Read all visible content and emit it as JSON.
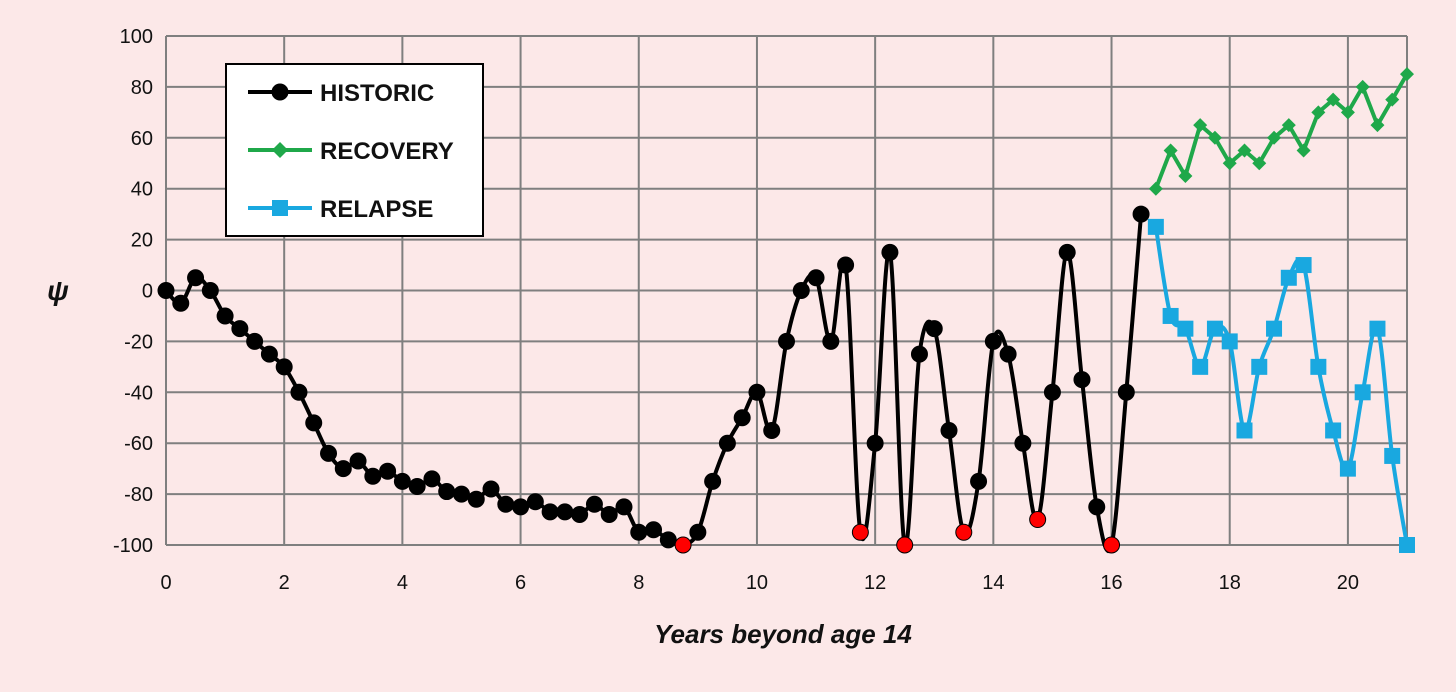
{
  "chart_data": {
    "type": "line",
    "title": "",
    "xlabel": "Years beyond age 14",
    "ylabel": "ψ",
    "xlim": [
      0,
      21
    ],
    "ylim": [
      -100,
      100
    ],
    "x_ticks": [
      "0",
      "2",
      "4",
      "6",
      "8",
      "10",
      "12",
      "14",
      "16",
      "18",
      "20"
    ],
    "y_ticks": [
      "100",
      "80",
      "60",
      "40",
      "20",
      "0",
      "-20",
      "-40",
      "-60",
      "-80",
      "-100"
    ],
    "grid": true,
    "legend_position": "top-left",
    "colors": {
      "background": "#fce8e8",
      "grid": "#7f7f7f",
      "highlight": "#ff0000"
    },
    "series": [
      {
        "name": "HISTORIC",
        "color": "#000000",
        "marker": "circle",
        "smooth": true,
        "x": [
          0,
          0.25,
          0.5,
          0.75,
          1,
          1.25,
          1.5,
          1.75,
          2,
          2.25,
          2.5,
          2.75,
          3,
          3.25,
          3.5,
          3.75,
          4,
          4.25,
          4.5,
          4.75,
          5,
          5.25,
          5.5,
          5.75,
          6,
          6.25,
          6.5,
          6.75,
          7,
          7.25,
          7.5,
          7.75,
          8,
          8.25,
          8.5,
          8.75,
          9,
          9.25,
          9.5,
          9.75,
          10,
          10.25,
          10.5,
          10.75,
          11,
          11.25,
          11.5,
          11.75,
          12,
          12.25,
          12.5,
          12.75,
          13,
          13.25,
          13.5,
          13.75,
          14,
          14.25,
          14.5,
          14.75,
          15,
          15.25,
          15.5,
          15.75,
          16,
          16.25,
          16.5
        ],
        "values": [
          0,
          -5,
          5,
          0,
          -10,
          -15,
          -20,
          -25,
          -30,
          -40,
          -52,
          -64,
          -70,
          -67,
          -73,
          -71,
          -75,
          -77,
          -74,
          -79,
          -80,
          -82,
          -78,
          -84,
          -85,
          -83,
          -87,
          -87,
          -88,
          -84,
          -88,
          -85,
          -95,
          -94,
          -98,
          -100,
          -95,
          -75,
          -60,
          -50,
          -40,
          -55,
          -20,
          0,
          5,
          -20,
          10,
          -95,
          -60,
          15,
          -100,
          -25,
          -15,
          -55,
          -95,
          -75,
          -20,
          -25,
          -60,
          -90,
          -40,
          15,
          -35,
          -85,
          -100,
          -40,
          30
        ],
        "highlighted_points_x": [
          8.75,
          11.75,
          12.5,
          13.5,
          14.75,
          16
        ]
      },
      {
        "name": "RECOVERY",
        "color": "#1fa84a",
        "marker": "diamond",
        "smooth": false,
        "x": [
          16.75,
          17,
          17.25,
          17.5,
          17.75,
          18,
          18.25,
          18.5,
          18.75,
          19,
          19.25,
          19.5,
          19.75,
          20,
          20.25,
          20.5,
          20.75,
          21
        ],
        "values": [
          40,
          55,
          45,
          65,
          60,
          50,
          55,
          50,
          60,
          65,
          55,
          70,
          75,
          70,
          80,
          65,
          75,
          85
        ]
      },
      {
        "name": "RELAPSE",
        "color": "#19a8e0",
        "marker": "square",
        "smooth": true,
        "x": [
          16.75,
          17,
          17.25,
          17.5,
          17.75,
          18,
          18.25,
          18.5,
          18.75,
          19,
          19.25,
          19.5,
          19.75,
          20,
          20.25,
          20.5,
          20.75,
          21
        ],
        "values": [
          25,
          -10,
          -15,
          -30,
          -15,
          -20,
          -55,
          -30,
          -15,
          5,
          10,
          -30,
          -55,
          -70,
          -40,
          -15,
          -65,
          -100
        ]
      }
    ]
  }
}
